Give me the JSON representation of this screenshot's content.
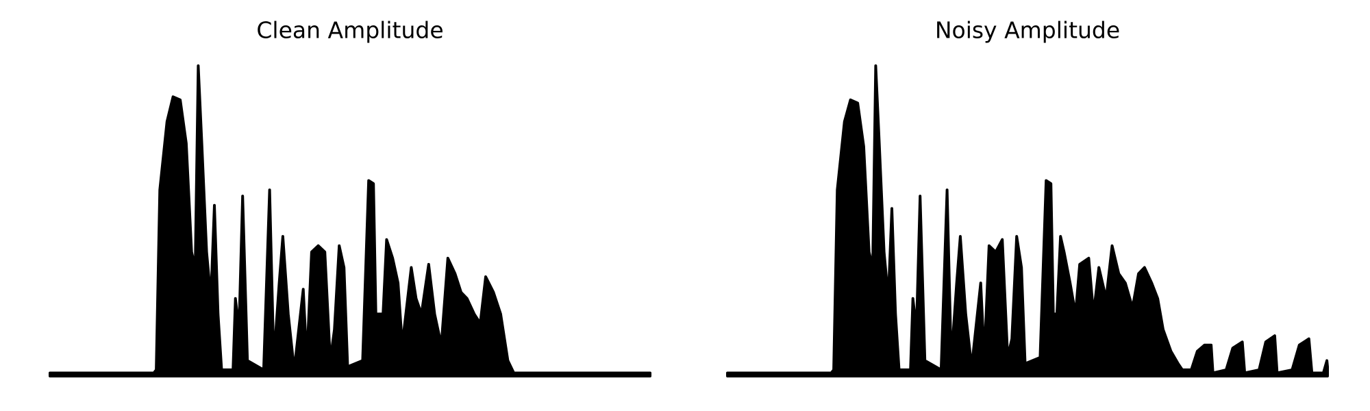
{
  "chart_data": [
    {
      "type": "area",
      "title": "Clean Amplitude",
      "color": "#000000",
      "xlim": [
        0,
        100
      ],
      "ylim": [
        0,
        1
      ],
      "x": [
        0,
        17.3,
        17.7,
        18.3,
        19.5,
        20.5,
        21.7,
        22.7,
        23.6,
        24.2,
        24.7,
        25.3,
        26.1,
        26.8,
        27.4,
        28.0,
        28.6,
        30.5,
        30.9,
        31.5,
        32.1,
        32.9,
        35.6,
        36.6,
        37.3,
        38.2,
        38.8,
        39.7,
        40.7,
        42.2,
        42.8,
        43.6,
        44.7,
        45.8,
        46.7,
        47.4,
        48.2,
        49.0,
        49.6,
        52.1,
        53.1,
        53.9,
        54.3,
        54.9,
        55.5,
        56.1,
        57.1,
        58.0,
        58.7,
        60.2,
        61.0,
        61.9,
        63.1,
        64.1,
        65.2,
        66.3,
        67.5,
        68.5,
        69.5,
        70.7,
        71.7,
        72.6,
        73.9,
        75.1,
        76.3,
        77.3,
        100
      ],
      "values": [
        0.01,
        0.01,
        0.02,
        0.6,
        0.82,
        0.9,
        0.89,
        0.75,
        0.4,
        0.35,
        1.0,
        0.75,
        0.4,
        0.25,
        0.55,
        0.2,
        0.02,
        0.02,
        0.25,
        0.15,
        0.58,
        0.05,
        0.02,
        0.6,
        0.05,
        0.3,
        0.45,
        0.2,
        0.02,
        0.28,
        0.05,
        0.4,
        0.42,
        0.4,
        0.05,
        0.15,
        0.42,
        0.35,
        0.03,
        0.05,
        0.63,
        0.62,
        0.2,
        0.2,
        0.2,
        0.44,
        0.38,
        0.3,
        0.1,
        0.35,
        0.25,
        0.2,
        0.36,
        0.2,
        0.1,
        0.38,
        0.33,
        0.27,
        0.25,
        0.2,
        0.17,
        0.32,
        0.27,
        0.2,
        0.05,
        0.01,
        0.01
      ]
    },
    {
      "type": "area",
      "title": "Noisy Amplitude",
      "color": "#000000",
      "xlim": [
        0,
        100
      ],
      "ylim": [
        0,
        1
      ],
      "x": [
        0,
        17.3,
        17.7,
        18.3,
        19.5,
        20.5,
        21.7,
        22.7,
        23.6,
        24.2,
        24.7,
        25.3,
        26.1,
        26.8,
        27.4,
        28.0,
        28.6,
        30.5,
        30.9,
        31.5,
        32.1,
        32.9,
        35.6,
        36.6,
        37.3,
        38.2,
        38.8,
        39.7,
        40.7,
        42.2,
        42.8,
        43.6,
        44.7,
        45.8,
        46.7,
        47.4,
        48.2,
        49.0,
        49.6,
        52.1,
        53.1,
        53.9,
        54.3,
        54.9,
        55.5,
        56.1,
        57.1,
        58.0,
        58.7,
        60.2,
        61.0,
        61.9,
        63.1,
        64.1,
        65.2,
        66.3,
        67.5,
        68.5,
        69.5,
        70.7,
        71.7,
        72.6,
        73.9,
        75.1,
        75.8,
        77.3,
        78.3,
        79.5,
        80.6,
        80.9,
        83.1,
        84.2,
        85.8,
        86.2,
        88.6,
        89.7,
        91.2,
        91.6,
        94.1,
        95.3,
        96.9,
        97.4,
        99.3,
        99.9,
        100
      ],
      "values": [
        0.01,
        0.01,
        0.02,
        0.6,
        0.82,
        0.89,
        0.88,
        0.74,
        0.4,
        0.35,
        1.0,
        0.75,
        0.4,
        0.25,
        0.54,
        0.2,
        0.02,
        0.02,
        0.25,
        0.15,
        0.58,
        0.05,
        0.02,
        0.6,
        0.05,
        0.3,
        0.45,
        0.2,
        0.03,
        0.3,
        0.06,
        0.42,
        0.4,
        0.44,
        0.06,
        0.12,
        0.45,
        0.35,
        0.04,
        0.06,
        0.63,
        0.62,
        0.2,
        0.2,
        0.45,
        0.4,
        0.3,
        0.2,
        0.36,
        0.38,
        0.2,
        0.35,
        0.25,
        0.42,
        0.33,
        0.3,
        0.22,
        0.33,
        0.35,
        0.3,
        0.25,
        0.15,
        0.08,
        0.04,
        0.02,
        0.02,
        0.08,
        0.1,
        0.1,
        0.01,
        0.02,
        0.09,
        0.11,
        0.01,
        0.02,
        0.11,
        0.13,
        0.01,
        0.02,
        0.1,
        0.12,
        0.01,
        0.01,
        0.05,
        0.03
      ]
    }
  ]
}
